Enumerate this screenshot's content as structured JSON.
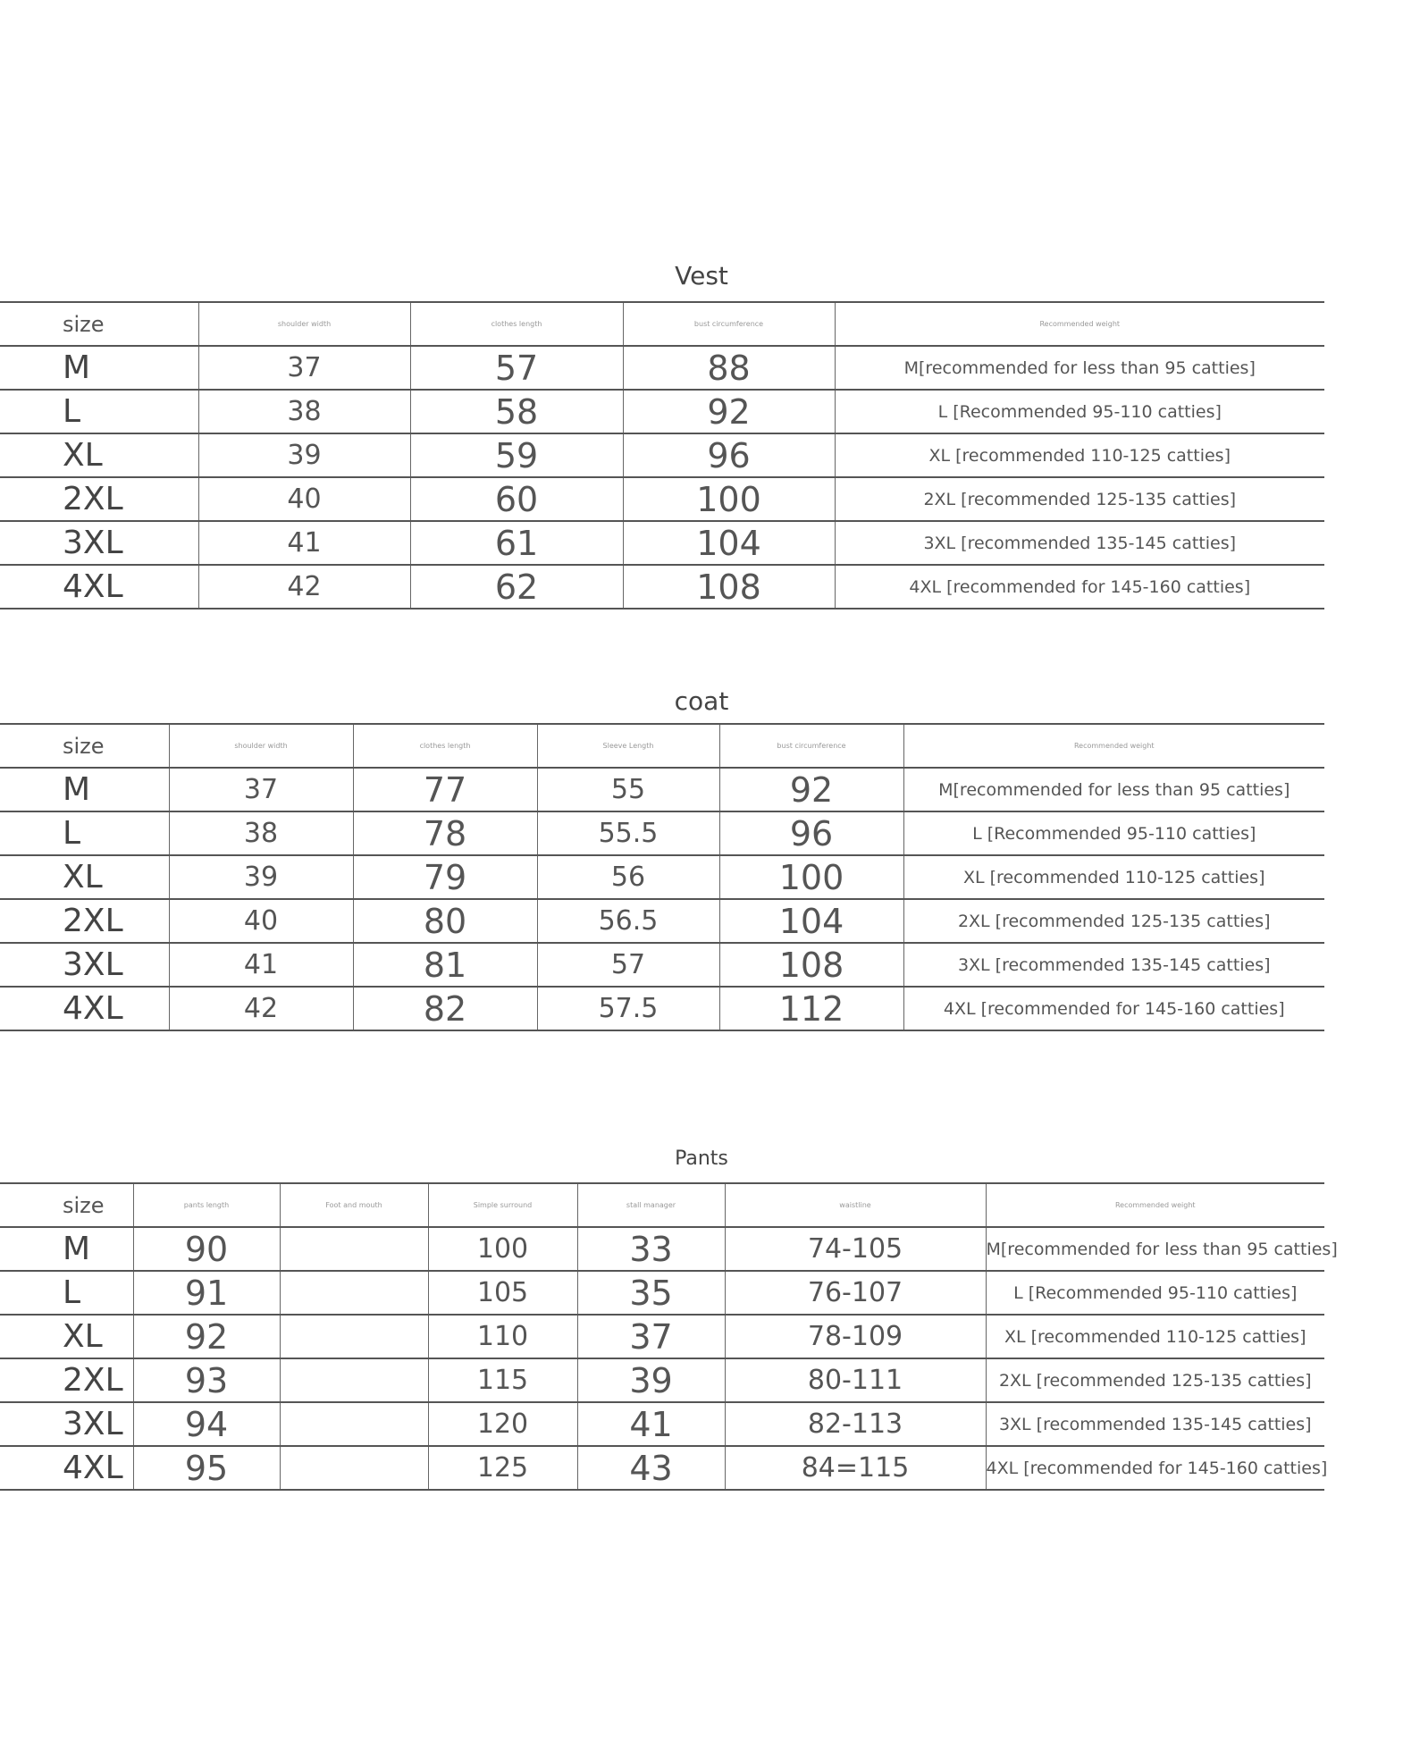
{
  "tables": [
    {
      "title": "Vest",
      "headers": [
        "size",
        "shoulder width",
        "clothes length",
        "bust circumference",
        "Recommended weight"
      ],
      "rows": [
        [
          "M",
          "37",
          "57",
          "88",
          "M[recommended for less than 95 catties]"
        ],
        [
          "L",
          "38",
          "58",
          "92",
          "L [Recommended 95-110 catties]"
        ],
        [
          "XL",
          "39",
          "59",
          "96",
          "XL [recommended 110-125 catties]"
        ],
        [
          "2XL",
          "40",
          "60",
          "100",
          "2XL [recommended 125-135 catties]"
        ],
        [
          "3XL",
          "41",
          "61",
          "104",
          "3XL [recommended 135-145 catties]"
        ],
        [
          "4XL",
          "42",
          "62",
          "108",
          "4XL [recommended for 145-160 catties]"
        ]
      ]
    },
    {
      "title": "coat",
      "headers": [
        "size",
        "shoulder width",
        "clothes length",
        "Sleeve Length",
        "bust circumference",
        "Recommended weight"
      ],
      "rows": [
        [
          "M",
          "37",
          "77",
          "55",
          "92",
          "M[recommended for less than 95 catties]"
        ],
        [
          "L",
          "38",
          "78",
          "55.5",
          "96",
          "L [Recommended 95-110 catties]"
        ],
        [
          "XL",
          "39",
          "79",
          "56",
          "100",
          "XL [recommended 110-125 catties]"
        ],
        [
          "2XL",
          "40",
          "80",
          "56.5",
          "104",
          "2XL [recommended 125-135 catties]"
        ],
        [
          "3XL",
          "41",
          "81",
          "57",
          "108",
          "3XL [recommended 135-145 catties]"
        ],
        [
          "4XL",
          "42",
          "82",
          "57.5",
          "112",
          "4XL [recommended for 145-160 catties]"
        ]
      ]
    },
    {
      "title": "Pants",
      "headers": [
        "size",
        "pants length",
        "Foot and mouth",
        "Simple surround",
        "stall manager",
        "waistline",
        "Recommended weight"
      ],
      "rows": [
        [
          "M",
          "90",
          "",
          "100",
          "33",
          "74-105",
          "M[recommended for less than 95 catties]"
        ],
        [
          "L",
          "91",
          "",
          "105",
          "35",
          "76-107",
          "L [Recommended 95-110 catties]"
        ],
        [
          "XL",
          "92",
          "",
          "110",
          "37",
          "78-109",
          "XL [recommended 110-125 catties]"
        ],
        [
          "2XL",
          "93",
          "",
          "115",
          "39",
          "80-111",
          "2XL [recommended 125-135 catties]"
        ],
        [
          "3XL",
          "94",
          "",
          "120",
          "41",
          "82-113",
          "3XL [recommended 135-145 catties]"
        ],
        [
          "4XL",
          "95",
          "",
          "125",
          "43",
          "84=115",
          "4XL [recommended for 145-160 catties]"
        ]
      ]
    }
  ]
}
